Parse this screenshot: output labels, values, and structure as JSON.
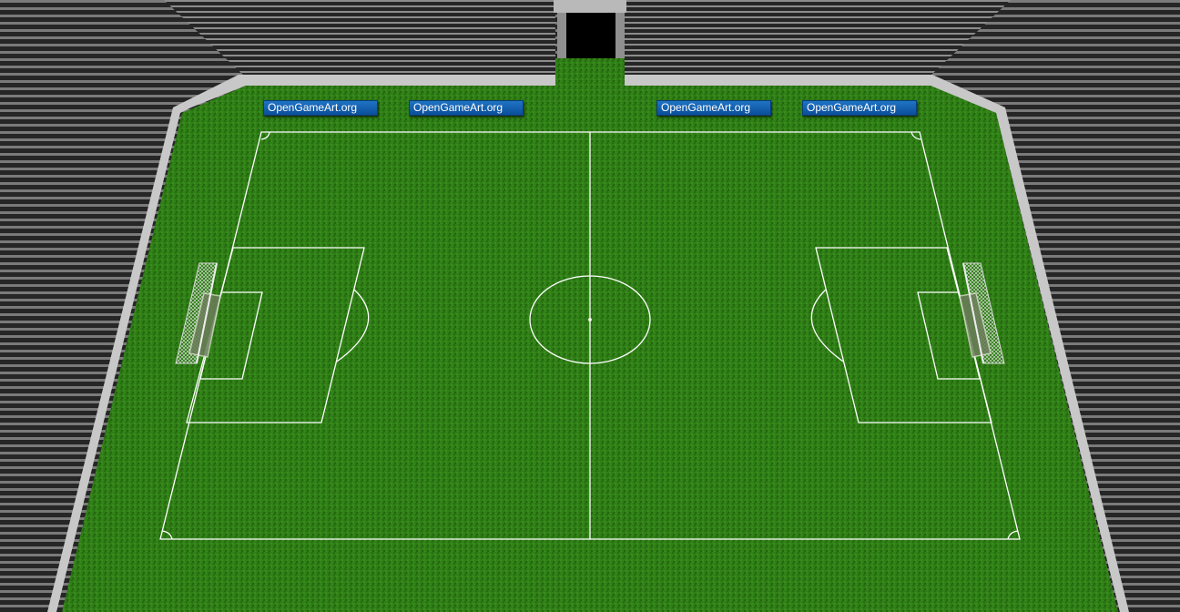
{
  "scene": {
    "title": "",
    "colors": {
      "grass": "#2f7f16",
      "grass_dark": "#246a0f",
      "line": "#ffffff",
      "stand_dark": "#2b2b2b",
      "stand_light": "#8a8a8a",
      "concrete": "#bdbdbd",
      "tunnel": "#000000",
      "ad_board": "#0b5fb0",
      "goal_frame": "#9aa38a"
    },
    "ad_boards": [
      {
        "label": "OpenGameArt.org"
      },
      {
        "label": "OpenGameArt.org"
      },
      {
        "label": "OpenGameArt.org"
      },
      {
        "label": "OpenGameArt.org"
      }
    ],
    "objects": {
      "left_goal": "goal-net-icon",
      "right_goal": "goal-net-icon",
      "tunnel": "players-tunnel"
    }
  }
}
